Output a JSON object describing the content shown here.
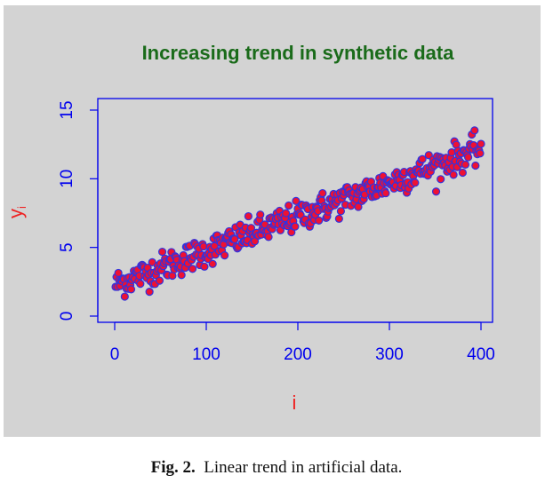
{
  "chart_data": {
    "type": "scatter",
    "title": "Increasing trend in synthetic data",
    "xlabel": "i",
    "ylabel": "y",
    "ylabel_subscript": "i",
    "xlim": [
      0,
      400
    ],
    "ylim": [
      0,
      15
    ],
    "xticks": [
      0,
      100,
      200,
      300,
      400
    ],
    "yticks": [
      0,
      5,
      10,
      15
    ],
    "grid": false,
    "legend": "none",
    "marker_fill": "#ee1133",
    "marker_edge": "#3333dd",
    "axis_color": "#0000ee",
    "background": "#d3d3d3",
    "trend": {
      "start": [
        1,
        2.3
      ],
      "end": [
        400,
        12.2
      ]
    },
    "x": [],
    "y": []
  },
  "caption": {
    "figure_number": "Fig. 2.",
    "text": "Linear trend in artificial data."
  }
}
